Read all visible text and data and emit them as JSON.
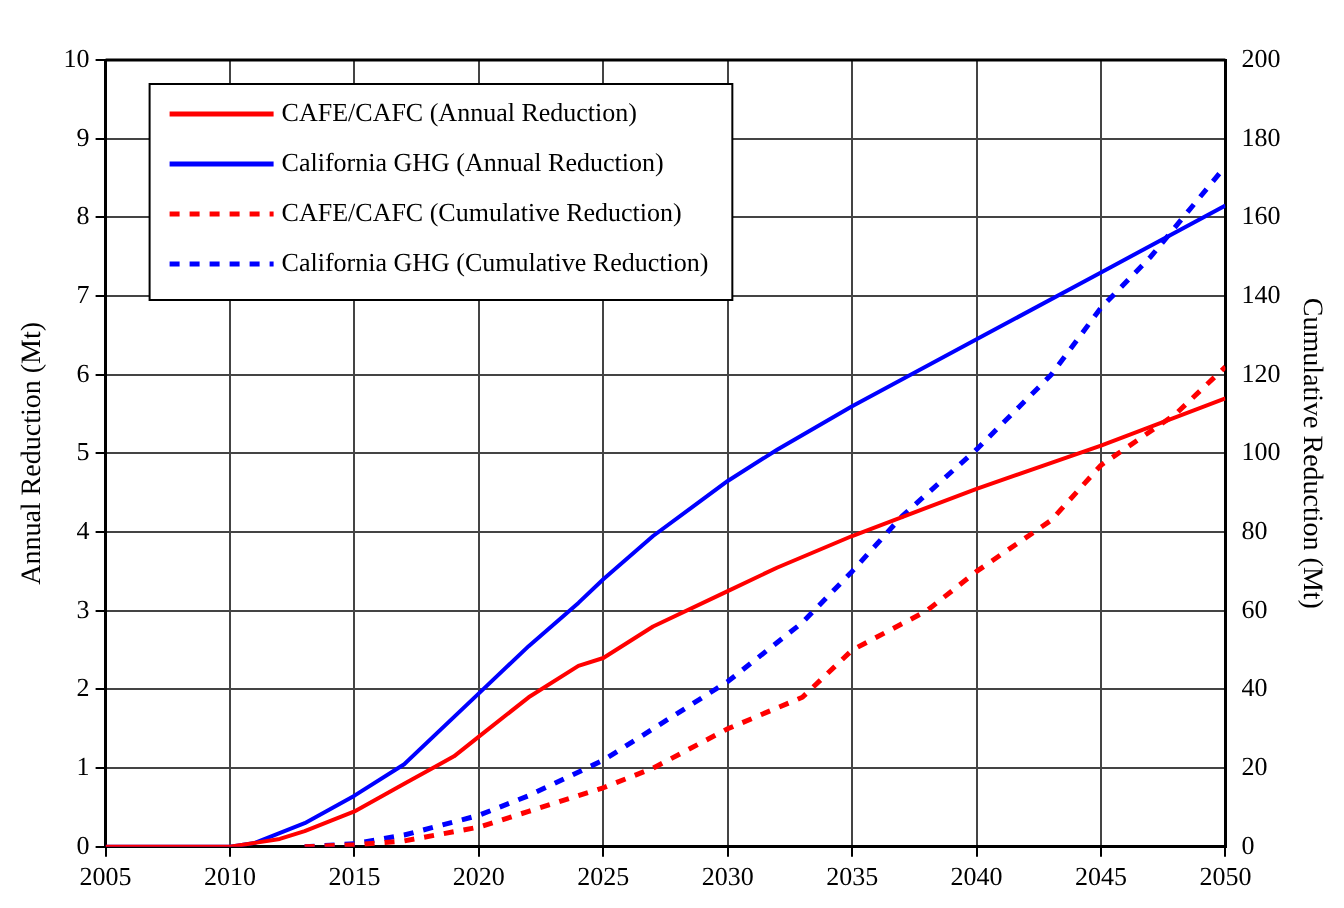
{
  "chart_data": {
    "type": "line",
    "xlabel": null,
    "ylabel": "Annual Reduction (Mt)",
    "y2label": "Cumulative Reduction (Mt)",
    "xlim": [
      2005,
      2050
    ],
    "xticks": [
      2005,
      2010,
      2015,
      2020,
      2025,
      2030,
      2035,
      2040,
      2045,
      2050
    ],
    "ylim": [
      0,
      10
    ],
    "yticks": [
      0,
      1,
      2,
      3,
      4,
      5,
      6,
      7,
      8,
      9,
      10
    ],
    "y2lim": [
      0,
      200
    ],
    "y2ticks": [
      0,
      20,
      40,
      60,
      80,
      100,
      120,
      140,
      160,
      180,
      200
    ],
    "grid": true,
    "legend": "top left",
    "marker": "none",
    "series": [
      {
        "name": "CAFE/CAFC (Annual Reduction)",
        "color": "#ff0000",
        "line_style": "solid",
        "x": [
          2005,
          2010,
          2011,
          2012,
          2013,
          2015,
          2017,
          2019,
          2020,
          2022,
          2024,
          2025,
          2027,
          2030,
          2032,
          2035,
          2040,
          2045,
          2050
        ],
        "values": [
          0,
          0,
          0.05,
          0.1,
          0.2,
          0.45,
          0.8,
          1.15,
          1.4,
          1.9,
          2.3,
          2.4,
          2.8,
          3.25,
          3.55,
          3.95,
          4.55,
          5.1,
          5.7
        ]
      },
      {
        "name": "California GHG (Annual Reduction)",
        "color": "#0000ff",
        "line_style": "solid",
        "x": [
          2005,
          2010,
          2011,
          2013,
          2015,
          2017,
          2020,
          2022,
          2024,
          2025,
          2027,
          2030,
          2032,
          2035,
          2040,
          2045,
          2050
        ],
        "values": [
          0,
          0,
          0.05,
          0.3,
          0.65,
          1.05,
          1.95,
          2.55,
          3.1,
          3.4,
          3.95,
          4.65,
          5.05,
          5.6,
          6.45,
          7.3,
          8.15
        ]
      },
      {
        "name": "CAFE/CAFC (Cumulative Reduction)",
        "color": "#ff0000",
        "line_style": "dashed",
        "axis": "y2",
        "x": [
          2013,
          2015,
          2017,
          2020,
          2022,
          2025,
          2027,
          2030,
          2033,
          2035,
          2038,
          2040,
          2043,
          2045,
          2048,
          2050
        ],
        "values": [
          0,
          0.5,
          1.5,
          5,
          9,
          15,
          20,
          30,
          38,
          50,
          60,
          70,
          83,
          97,
          110,
          122
        ]
      },
      {
        "name": "California GHG (Cumulative Reduction)",
        "color": "#0000ff",
        "line_style": "dashed",
        "axis": "y2",
        "x": [
          2013,
          2015,
          2017,
          2020,
          2022,
          2025,
          2027,
          2030,
          2033,
          2035,
          2037,
          2040,
          2043,
          2045,
          2047,
          2050
        ],
        "values": [
          0,
          0.8,
          3,
          8,
          13,
          22,
          30,
          42,
          57,
          70,
          84,
          101,
          120,
          137,
          150,
          173
        ]
      }
    ]
  }
}
